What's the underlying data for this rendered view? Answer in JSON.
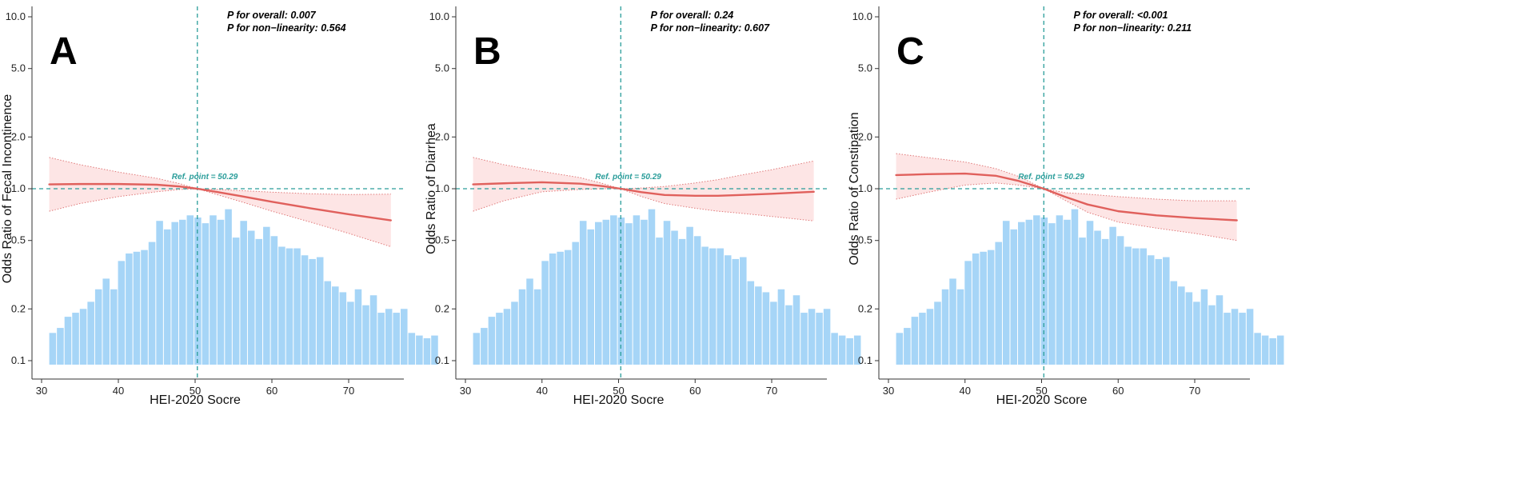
{
  "colors": {
    "histogram": "#a6d5f7",
    "curve": "#e0605c",
    "ci_fill": "#fde1e1",
    "ci_border": "#e07a7a",
    "reference_line": "#2a9d9a",
    "axis": "#333333"
  },
  "chart_data": [
    {
      "type": "line",
      "panel": "A",
      "xlabel": "HEI-2020 Socre",
      "ylabel": "Odds Ratio of Fecal Incontinence",
      "xlim": [
        29,
        77
      ],
      "ylim": [
        0.1,
        12
      ],
      "y_scale": "log",
      "x_ticks": [
        30,
        40,
        50,
        60,
        70
      ],
      "y_ticks": [
        0.1,
        0.2,
        0.5,
        1.0,
        2.0,
        5.0,
        10.0
      ],
      "y_tick_labels": [
        "0.1",
        "0.2",
        "0.5",
        "1.0",
        "2.0",
        "5.0",
        "10.0"
      ],
      "p_overall": "P for overall: 0.007",
      "p_nonlinear": "P for non−linearity: 0.564",
      "ref_label": "Ref. point = 50.29",
      "ref_x": 50.29,
      "ref_y": 1.0,
      "x": [
        31,
        35,
        40,
        45,
        48,
        50.29,
        53,
        56,
        60,
        65,
        70,
        75.5
      ],
      "or": [
        1.06,
        1.065,
        1.065,
        1.055,
        1.03,
        1.0,
        0.955,
        0.905,
        0.84,
        0.77,
        0.71,
        0.655
      ],
      "ci_lower": [
        0.74,
        0.82,
        0.9,
        0.96,
        0.99,
        1.0,
        0.92,
        0.84,
        0.74,
        0.64,
        0.55,
        0.46
      ],
      "ci_upper": [
        1.52,
        1.38,
        1.25,
        1.15,
        1.07,
        1.0,
        0.99,
        0.975,
        0.955,
        0.935,
        0.925,
        0.93
      ],
      "histogram": {
        "bin_start": 31,
        "bin_width": 0.995,
        "heights": [
          0.145,
          0.155,
          0.18,
          0.19,
          0.2,
          0.22,
          0.26,
          0.3,
          0.26,
          0.38,
          0.42,
          0.43,
          0.44,
          0.49,
          0.65,
          0.58,
          0.64,
          0.66,
          0.7,
          0.68,
          0.63,
          0.7,
          0.66,
          0.76,
          0.52,
          0.65,
          0.57,
          0.51,
          0.6,
          0.53,
          0.46,
          0.45,
          0.45,
          0.41,
          0.39,
          0.4,
          0.29,
          0.27,
          0.25,
          0.22,
          0.26,
          0.21,
          0.24,
          0.19,
          0.2,
          0.19,
          0.2,
          0.145,
          0.14,
          0.135,
          0.14
        ]
      }
    },
    {
      "type": "line",
      "panel": "B",
      "xlabel": "HEI-2020 Socre",
      "ylabel": "Odds Ratio of Diarrhea",
      "xlim": [
        29,
        77
      ],
      "ylim": [
        0.1,
        12
      ],
      "y_scale": "log",
      "x_ticks": [
        30,
        40,
        50,
        60,
        70
      ],
      "y_ticks": [
        0.1,
        0.2,
        0.5,
        1.0,
        2.0,
        5.0,
        10.0
      ],
      "y_tick_labels": [
        "0.1",
        "0.2",
        "0.5",
        "1.0",
        "2.0",
        "5.0",
        "10.0"
      ],
      "p_overall": "P for overall: 0.24",
      "p_nonlinear": "P for non−linearity: 0.607",
      "ref_label": "Ref. point = 50.29",
      "ref_x": 50.29,
      "ref_y": 1.0,
      "x": [
        31,
        35,
        40,
        45,
        48,
        50.29,
        53,
        56,
        60,
        63,
        66,
        70,
        75.5
      ],
      "or": [
        1.06,
        1.075,
        1.09,
        1.07,
        1.035,
        1.0,
        0.955,
        0.92,
        0.91,
        0.91,
        0.92,
        0.935,
        0.96
      ],
      "ci_lower": [
        0.74,
        0.85,
        0.96,
        0.99,
        1.0,
        1.0,
        0.9,
        0.82,
        0.77,
        0.74,
        0.72,
        0.69,
        0.65
      ],
      "ci_upper": [
        1.52,
        1.38,
        1.26,
        1.16,
        1.07,
        1.0,
        1.01,
        1.03,
        1.08,
        1.13,
        1.2,
        1.29,
        1.45
      ],
      "histogram": {
        "bin_start": 31,
        "bin_width": 0.995,
        "heights": [
          0.145,
          0.155,
          0.18,
          0.19,
          0.2,
          0.22,
          0.26,
          0.3,
          0.26,
          0.38,
          0.42,
          0.43,
          0.44,
          0.49,
          0.65,
          0.58,
          0.64,
          0.66,
          0.7,
          0.68,
          0.63,
          0.7,
          0.66,
          0.76,
          0.52,
          0.65,
          0.57,
          0.51,
          0.6,
          0.53,
          0.46,
          0.45,
          0.45,
          0.41,
          0.39,
          0.4,
          0.29,
          0.27,
          0.25,
          0.22,
          0.26,
          0.21,
          0.24,
          0.19,
          0.2,
          0.19,
          0.2,
          0.145,
          0.14,
          0.135,
          0.14
        ]
      }
    },
    {
      "type": "line",
      "panel": "C",
      "xlabel": "HEI-2020 Score",
      "ylabel": "Odds Ratio of Constipation",
      "xlim": [
        29,
        77
      ],
      "ylim": [
        0.1,
        12
      ],
      "y_scale": "log",
      "x_ticks": [
        30,
        40,
        50,
        60,
        70
      ],
      "y_ticks": [
        0.1,
        0.2,
        0.5,
        1.0,
        2.0,
        5.0,
        10.0
      ],
      "y_tick_labels": [
        "0.1",
        "0.2",
        "0.5",
        "1.0",
        "2.0",
        "5.0",
        "10.0"
      ],
      "p_overall": "P for overall: <0.001",
      "p_nonlinear": "P for non−linearity: 0.211",
      "ref_label": "Ref. point = 50.29",
      "ref_x": 50.29,
      "ref_y": 1.0,
      "x": [
        31,
        35,
        40,
        44,
        47,
        50.29,
        53,
        56,
        60,
        65,
        70,
        75.5
      ],
      "or": [
        1.2,
        1.215,
        1.225,
        1.19,
        1.11,
        1.0,
        0.9,
        0.81,
        0.74,
        0.7,
        0.675,
        0.655
      ],
      "ci_lower": [
        0.87,
        0.95,
        1.05,
        1.08,
        1.05,
        1.0,
        0.86,
        0.73,
        0.64,
        0.59,
        0.55,
        0.5
      ],
      "ci_upper": [
        1.6,
        1.52,
        1.43,
        1.31,
        1.18,
        1.0,
        0.95,
        0.93,
        0.9,
        0.87,
        0.85,
        0.85
      ],
      "histogram": {
        "bin_start": 31,
        "bin_width": 0.995,
        "heights": [
          0.145,
          0.155,
          0.18,
          0.19,
          0.2,
          0.22,
          0.26,
          0.3,
          0.26,
          0.38,
          0.42,
          0.43,
          0.44,
          0.49,
          0.65,
          0.58,
          0.64,
          0.66,
          0.7,
          0.68,
          0.63,
          0.7,
          0.66,
          0.76,
          0.52,
          0.65,
          0.57,
          0.51,
          0.6,
          0.53,
          0.46,
          0.45,
          0.45,
          0.41,
          0.39,
          0.4,
          0.29,
          0.27,
          0.25,
          0.22,
          0.26,
          0.21,
          0.24,
          0.19,
          0.2,
          0.19,
          0.2,
          0.145,
          0.14,
          0.135,
          0.14
        ]
      }
    }
  ]
}
